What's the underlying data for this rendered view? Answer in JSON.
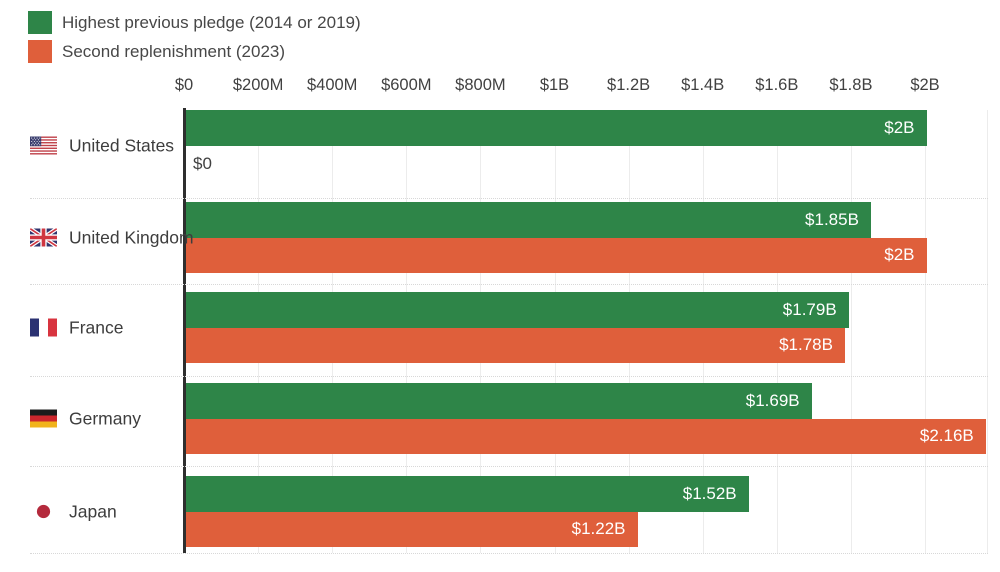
{
  "legend": {
    "items": [
      {
        "label": "Highest previous pledge (2014 or 2019)",
        "color": "#2e8548"
      },
      {
        "label": "Second replenishment (2023)",
        "color": "#df5f3b"
      }
    ]
  },
  "chart_data": {
    "type": "bar",
    "orientation": "horizontal",
    "legend_position": "top-left",
    "grid": true,
    "categories": [
      "United States",
      "United Kingdom",
      "France",
      "Germany",
      "Japan"
    ],
    "flags": [
      "us",
      "gb",
      "fr",
      "de",
      "jp"
    ],
    "series": [
      {
        "name": "Highest previous pledge (2014 or 2019)",
        "color": "#2e8548",
        "values_musd": [
          2000,
          1850,
          1790,
          1690,
          1520
        ],
        "labels": [
          "$2B",
          "$1.85B",
          "$1.79B",
          "$1.69B",
          "$1.52B"
        ]
      },
      {
        "name": "Second replenishment (2023)",
        "color": "#df5f3b",
        "values_musd": [
          0,
          2000,
          1780,
          2160,
          1220
        ],
        "labels": [
          "$0",
          "$2B",
          "$1.78B",
          "$2.16B",
          "$1.22B"
        ]
      }
    ],
    "x_axis": {
      "ticks": [
        {
          "label": "$0",
          "value": 0
        },
        {
          "label": "$200M",
          "value": 200
        },
        {
          "label": "$400M",
          "value": 400
        },
        {
          "label": "$600M",
          "value": 600
        },
        {
          "label": "$800M",
          "value": 800
        },
        {
          "label": "$1B",
          "value": 1000
        },
        {
          "label": "$1.2B",
          "value": 1200
        },
        {
          "label": "$1.4B",
          "value": 1400
        },
        {
          "label": "$1.6B",
          "value": 1600
        },
        {
          "label": "$1.8B",
          "value": 1800
        },
        {
          "label": "$2B",
          "value": 2000
        }
      ],
      "xlim_musd": [
        0,
        2170
      ]
    },
    "colors": {
      "green": "#2e8548",
      "orange": "#df5f3b",
      "axis_line": "#2e2e2e",
      "gridline": "#ececec",
      "separator": "#d8d8d8",
      "text": "#414141",
      "bar_label": "#ffffff"
    }
  }
}
